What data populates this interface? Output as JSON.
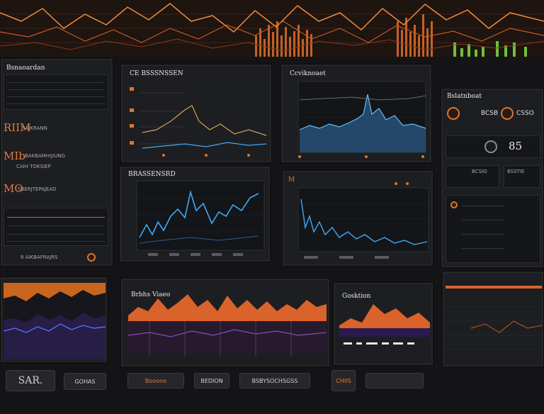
{
  "colors": {
    "accent": "#e0702a",
    "blue": "#3fa9f5",
    "green": "#6fbf3c",
    "bg": "#141416"
  },
  "left_panel": {
    "title": "Bsnaoardan",
    "label1": "SAIKRANN",
    "big1": "RIIM",
    "big2": "MIb",
    "label2": "BAKBAMHIJIUNG",
    "label3": "CAIH TOKSIEP",
    "big3": "MO",
    "label4": "SBERJTEPAJEAO",
    "footer": "8 AIKBAFRAJRS"
  },
  "panel_a": {
    "title": "CE BSSSNSSEN"
  },
  "panel_b": {
    "title": "Ccviknoaet"
  },
  "panel_c": {
    "title": "BRASSENSRD"
  },
  "panel_d": {
    "title": "M"
  },
  "right_panel": {
    "title": "Bslatnboat",
    "code1": "BCSB",
    "code2": "CSSO",
    "num": "85",
    "code3": "BCSIO",
    "code4": "BSSTIE"
  },
  "bottom_a": {
    "title": "Brbhs Viaeo"
  },
  "bottom_b": {
    "title": "Gosktion"
  },
  "bottom_buttons": {
    "b1": "SAR.",
    "b2": "GOHAS",
    "b3": "Booono",
    "b4": "BEDION",
    "b5": "BSBYSOCHSGSS",
    "b6": "CHIIS"
  },
  "icons": [
    "gear-icon",
    "clock-icon",
    "refresh-icon",
    "chart-icon",
    "user-icon"
  ]
}
